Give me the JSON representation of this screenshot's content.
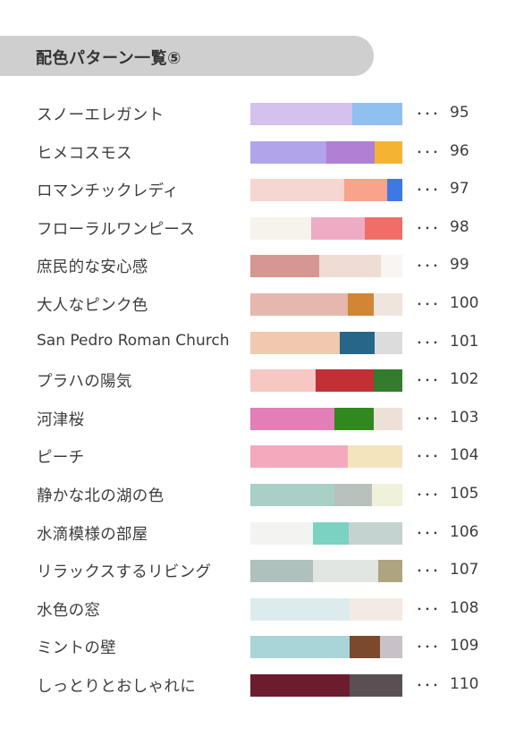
{
  "header": {
    "title": "配色パターン一覧⑤"
  },
  "palettes": [
    {
      "name": "スノーエレガント",
      "page": "95",
      "colors": [
        {
          "hex": "#d2c2ed",
          "share": 0.67
        },
        {
          "hex": "#8fc0ef",
          "share": 0.33
        }
      ]
    },
    {
      "name": "ヒメコスモス",
      "page": "96",
      "colors": [
        {
          "hex": "#b2a4ea",
          "share": 0.5
        },
        {
          "hex": "#b17fd4",
          "share": 0.32
        },
        {
          "hex": "#f5b334",
          "share": 0.18
        }
      ]
    },
    {
      "name": "ロマンチックレディ",
      "page": "97",
      "colors": [
        {
          "hex": "#f6d6d0",
          "share": 0.62
        },
        {
          "hex": "#f8a38a",
          "share": 0.28
        },
        {
          "hex": "#3f78e6",
          "share": 0.1
        }
      ]
    },
    {
      "name": "フローラルワンピース",
      "page": "98",
      "colors": [
        {
          "hex": "#f5f3ec",
          "share": 0.4
        },
        {
          "hex": "#efabc3",
          "share": 0.35
        },
        {
          "hex": "#f06e67",
          "share": 0.25
        }
      ]
    },
    {
      "name": "庶民的な安心感",
      "page": "99",
      "colors": [
        {
          "hex": "#d49791",
          "share": 0.45
        },
        {
          "hex": "#efdcd2",
          "share": 0.41
        },
        {
          "hex": "#f8f5f3",
          "share": 0.14
        }
      ]
    },
    {
      "name": "大人なピンク色",
      "page": "100",
      "colors": [
        {
          "hex": "#e6b7ad",
          "share": 0.64
        },
        {
          "hex": "#d28535",
          "share": 0.17
        },
        {
          "hex": "#f0e5dc",
          "share": 0.19
        }
      ]
    },
    {
      "name": "San Pedro Roman Church",
      "page": "101",
      "colors": [
        {
          "hex": "#f0c9ae",
          "share": 0.59
        },
        {
          "hex": "#276589",
          "share": 0.23
        },
        {
          "hex": "#dcdcdc",
          "share": 0.18
        }
      ]
    },
    {
      "name": "プラハの陽気",
      "page": "102",
      "colors": [
        {
          "hex": "#f6c8c1",
          "share": 0.43
        },
        {
          "hex": "#c13035",
          "share": 0.38
        },
        {
          "hex": "#347b2e",
          "share": 0.19
        }
      ]
    },
    {
      "name": "河津桜",
      "page": "103",
      "colors": [
        {
          "hex": "#e17fb6",
          "share": 0.55
        },
        {
          "hex": "#31881f",
          "share": 0.26
        },
        {
          "hex": "#ede1d7",
          "share": 0.19
        }
      ]
    },
    {
      "name": "ピーチ",
      "page": "104",
      "colors": [
        {
          "hex": "#f4a9bc",
          "share": 0.64
        },
        {
          "hex": "#f4e4bd",
          "share": 0.36
        }
      ]
    },
    {
      "name": "静かな北の湖の色",
      "page": "105",
      "colors": [
        {
          "hex": "#a9cfc7",
          "share": 0.55
        },
        {
          "hex": "#b8c1bb",
          "share": 0.25
        },
        {
          "hex": "#eff1db",
          "share": 0.2
        }
      ]
    },
    {
      "name": "水滴模様の部屋",
      "page": "106",
      "colors": [
        {
          "hex": "#f3f4f2",
          "share": 0.41
        },
        {
          "hex": "#7bd2c3",
          "share": 0.24
        },
        {
          "hex": "#c4d3d0",
          "share": 0.35
        }
      ]
    },
    {
      "name": "リラックスするリビング",
      "page": "107",
      "colors": [
        {
          "hex": "#afc1bd",
          "share": 0.41
        },
        {
          "hex": "#e2e6e3",
          "share": 0.43
        },
        {
          "hex": "#aea47f",
          "share": 0.16
        }
      ]
    },
    {
      "name": "水色の窓",
      "page": "108",
      "colors": [
        {
          "hex": "#dcecec",
          "share": 0.65
        },
        {
          "hex": "#f3ebe3",
          "share": 0.35
        }
      ]
    },
    {
      "name": "ミントの壁",
      "page": "109",
      "colors": [
        {
          "hex": "#a9d4d8",
          "share": 0.65
        },
        {
          "hex": "#7b4a2d",
          "share": 0.2
        },
        {
          "hex": "#c8c1c8",
          "share": 0.15
        }
      ]
    },
    {
      "name": "しっとりとおしゃれに",
      "page": "110",
      "colors": [
        {
          "hex": "#6c1c2e",
          "share": 0.65
        },
        {
          "hex": "#5a5054",
          "share": 0.35
        }
      ]
    }
  ],
  "separator": "･･･"
}
